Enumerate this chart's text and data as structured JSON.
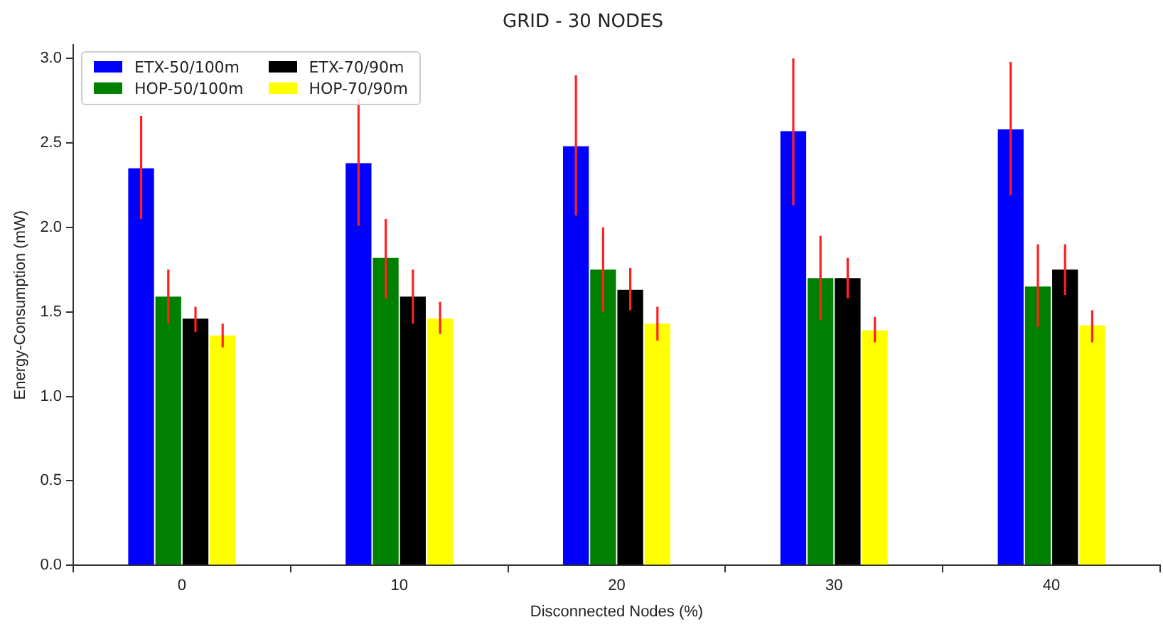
{
  "chart_data": {
    "type": "bar",
    "title": "GRID - 30 NODES",
    "xlabel": "Disconnected Nodes (%)",
    "ylabel": "Energy-Consumption (mW)",
    "categories": [
      "0",
      "10",
      "20",
      "30",
      "40"
    ],
    "series": [
      {
        "name": "ETX-50/100m",
        "color": "#0000ff",
        "values": [
          2.35,
          2.38,
          2.48,
          2.57,
          2.58
        ],
        "errors": [
          [
            2.05,
            2.66
          ],
          [
            2.01,
            2.76
          ],
          [
            2.07,
            2.9
          ],
          [
            2.13,
            3.0
          ],
          [
            2.19,
            2.98
          ]
        ]
      },
      {
        "name": "HOP-50/100m",
        "color": "#008000",
        "values": [
          1.59,
          1.82,
          1.75,
          1.7,
          1.65
        ],
        "errors": [
          [
            1.43,
            1.75
          ],
          [
            1.58,
            2.05
          ],
          [
            1.5,
            2.0
          ],
          [
            1.45,
            1.95
          ],
          [
            1.41,
            1.9
          ]
        ]
      },
      {
        "name": "ETX-70/90m",
        "color": "#000000",
        "values": [
          1.46,
          1.59,
          1.63,
          1.7,
          1.75
        ],
        "errors": [
          [
            1.38,
            1.53
          ],
          [
            1.43,
            1.75
          ],
          [
            1.51,
            1.76
          ],
          [
            1.58,
            1.82
          ],
          [
            1.6,
            1.9
          ]
        ]
      },
      {
        "name": "HOP-70/90m",
        "color": "#ffff00",
        "values": [
          1.36,
          1.46,
          1.43,
          1.39,
          1.42
        ],
        "errors": [
          [
            1.29,
            1.43
          ],
          [
            1.37,
            1.56
          ],
          [
            1.33,
            1.53
          ],
          [
            1.32,
            1.47
          ],
          [
            1.32,
            1.51
          ]
        ]
      }
    ],
    "ylim": [
      0,
      3.08
    ],
    "yticks": [
      {
        "value": 0,
        "label": "0.0"
      },
      0.5,
      {
        "value": 1,
        "label": "1.0"
      },
      1.5,
      {
        "value": 2,
        "label": "2.0"
      },
      2.5,
      {
        "value": 3,
        "label": "3.0"
      }
    ],
    "grid": false,
    "legend": "top left"
  }
}
